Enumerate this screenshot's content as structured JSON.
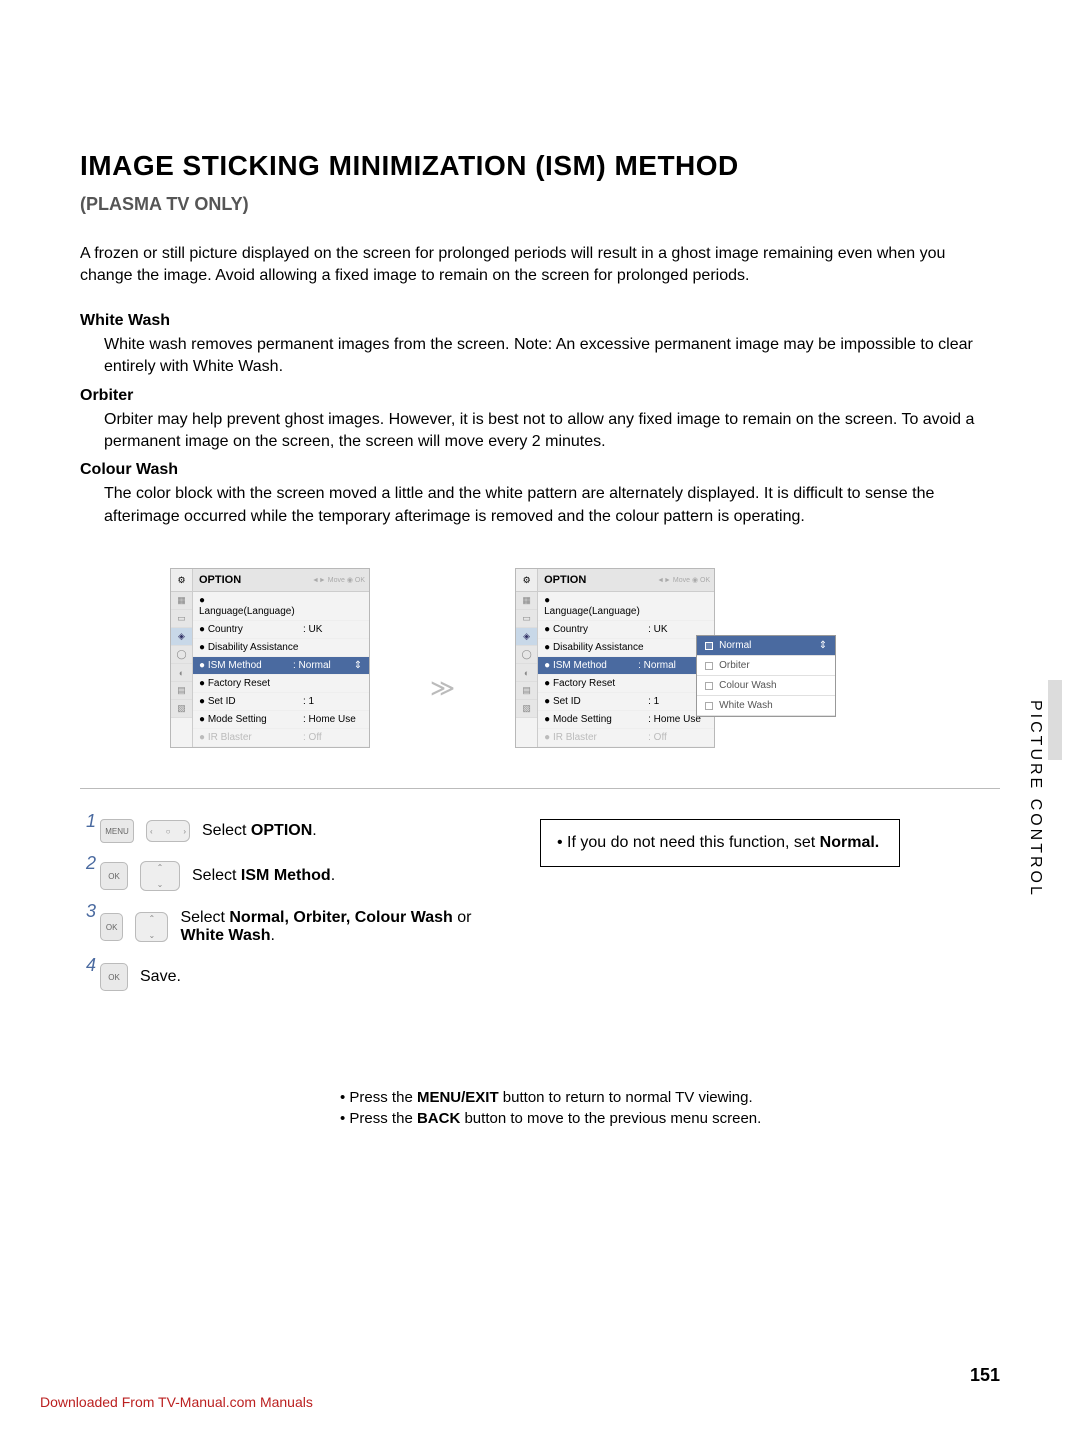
{
  "title": "IMAGE STICKING MINIMIZATION (ISM) METHOD",
  "subtitle": "(PLASMA TV ONLY)",
  "intro": "A frozen or still picture displayed on the screen for prolonged periods will result in a ghost image remaining even when you change the image. Avoid allowing a fixed image to remain on the screen for prolonged periods.",
  "sections": {
    "white_wash": {
      "title": "White Wash",
      "body": "White wash removes permanent images from the screen.\nNote: An excessive permanent image may be impossible to clear entirely with White Wash."
    },
    "orbiter": {
      "title": "Orbiter",
      "body": "Orbiter may help prevent ghost images. However, it is best not to allow any fixed image to remain on the screen. To avoid a permanent image on the screen, the screen will move every 2 minutes."
    },
    "colour_wash": {
      "title": "Colour Wash",
      "body": "The color block with the screen moved a little and the white pattern are alternately displayed. It is difficult to sense the afterimage occurred while the temporary afterimage is removed and the colour pattern is operating."
    }
  },
  "osd": {
    "header_title": "OPTION",
    "header_hint": "◄► Move   ◉ OK",
    "items": [
      {
        "label": "● Language(Language)",
        "val": ""
      },
      {
        "label": "● Country",
        "val": ": UK"
      },
      {
        "label": "● Disability Assistance",
        "val": ""
      },
      {
        "label": "● ISM Method",
        "val": ": Normal",
        "hl": true,
        "slider": "⇕"
      },
      {
        "label": "● Factory Reset",
        "val": ""
      },
      {
        "label": "● Set ID",
        "val": ": 1"
      },
      {
        "label": "● Mode Setting",
        "val": ": Home Use"
      },
      {
        "label": "● IR Blaster",
        "val": ": Off",
        "dim": true
      }
    ],
    "popup": [
      "Normal",
      "Orbiter",
      "Colour Wash",
      "White Wash"
    ]
  },
  "steps": [
    {
      "num": "1",
      "btns": [
        "MENU",
        "dpad-h"
      ],
      "text_pre": "Select ",
      "text_bold": "OPTION",
      "text_post": "."
    },
    {
      "num": "2",
      "btns": [
        "OK",
        "dpad-v"
      ],
      "text_pre": "Select ",
      "text_bold": "ISM Method",
      "text_post": "."
    },
    {
      "num": "3",
      "btns": [
        "OK",
        "dpad-v"
      ],
      "text_pre": "Select ",
      "text_bold": "Normal, Orbiter, Colour Wash",
      "text_mid": " or ",
      "text_bold2": "White Wash",
      "text_post": "."
    },
    {
      "num": "4",
      "btns": [
        "OK"
      ],
      "text_pre": "Save.",
      "text_bold": "",
      "text_post": ""
    }
  ],
  "note": {
    "pre": "If you do not need this function, set ",
    "bold": "Normal."
  },
  "sidebar": "PICTURE CONTROL",
  "footer": {
    "tip1_pre": "Press the ",
    "tip1_bold": "MENU/EXIT",
    "tip1_post": " button to return to normal TV viewing.",
    "tip2_pre": "Press the ",
    "tip2_bold": "BACK",
    "tip2_post": " button to move to the previous menu screen."
  },
  "page_number": "151",
  "download_link": "Downloaded From TV-Manual.com Manuals",
  "remote": {
    "menu": "MENU",
    "ok": "OK\n◉",
    "up": "⌃",
    "down": "⌄",
    "left": "‹",
    "right": "›"
  },
  "colors": {
    "highlight": "#4a6aa0",
    "link": "#bb2020"
  }
}
